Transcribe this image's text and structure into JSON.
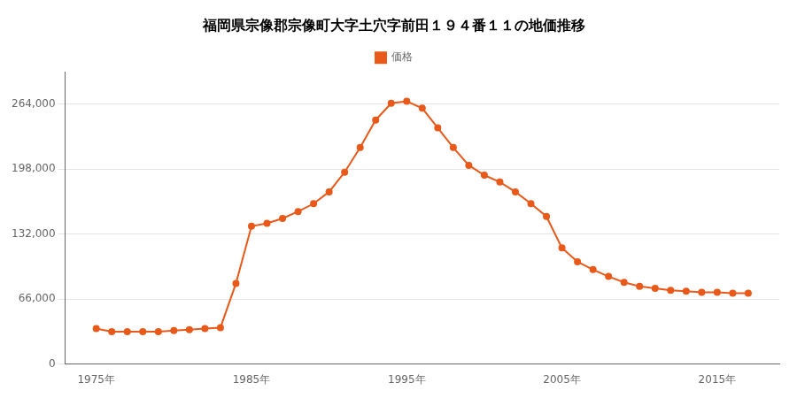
{
  "chart_data": {
    "type": "line",
    "title": "福岡県宗像郡宗像町大字土穴字前田１９４番１１の地価推移",
    "x": [
      1975,
      1976,
      1977,
      1978,
      1979,
      1980,
      1981,
      1982,
      1983,
      1984,
      1985,
      1986,
      1987,
      1988,
      1989,
      1990,
      1991,
      1992,
      1993,
      1994,
      1995,
      1996,
      1997,
      1998,
      1999,
      2000,
      2001,
      2002,
      2003,
      2004,
      2005,
      2006,
      2007,
      2008,
      2009,
      2010,
      2011,
      2012,
      2013,
      2014,
      2015,
      2016,
      2017
    ],
    "series": [
      {
        "name": "価格",
        "color": "#e8591a",
        "marker": "circle",
        "values": [
          36000,
          33000,
          33000,
          33000,
          33000,
          34000,
          35000,
          36000,
          37000,
          82000,
          140000,
          143000,
          148000,
          155000,
          163000,
          175000,
          195000,
          220000,
          248000,
          265000,
          267000,
          260000,
          240000,
          220000,
          202000,
          192000,
          185000,
          175000,
          163000,
          150000,
          118000,
          104000,
          96000,
          89000,
          83000,
          79000,
          77000,
          75000,
          74000,
          73000,
          73000,
          72000,
          72000
        ]
      }
    ],
    "xlim": [
      1973,
      2019
    ],
    "xticks": [
      {
        "value": 1975,
        "label": "1975年"
      },
      {
        "value": 1985,
        "label": "1985年"
      },
      {
        "value": 1995,
        "label": "1995年"
      },
      {
        "value": 2005,
        "label": "2005年"
      },
      {
        "value": 2015,
        "label": "2015年"
      }
    ],
    "ylim": [
      0,
      297000
    ],
    "yticks": [
      0,
      {
        "value": 66000,
        "label": "66,000"
      },
      {
        "value": 132000,
        "label": "132,000"
      },
      {
        "value": 198000,
        "label": "198,000"
      },
      {
        "value": 264000,
        "label": "264,000"
      }
    ],
    "grid": "y",
    "legend": "top"
  }
}
